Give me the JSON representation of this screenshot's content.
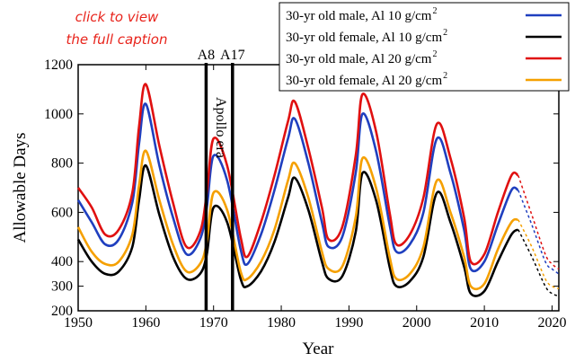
{
  "caption_link": {
    "line1": "click to view",
    "line2": "the full caption"
  },
  "colors": {
    "blue": "#1f3fbf",
    "black": "#000000",
    "red": "#e01010",
    "orange": "#f5a000"
  },
  "chart_data": {
    "type": "line",
    "xlabel": "Year",
    "ylabel": "Allowable Days",
    "xlim": [
      1950,
      2021
    ],
    "ylim": [
      200,
      1200
    ],
    "xticks": [
      1950,
      1960,
      1970,
      1980,
      1990,
      2000,
      2010,
      2020
    ],
    "yticks": [
      200,
      300,
      400,
      600,
      800,
      1000,
      1200
    ],
    "grid": false,
    "legend_position": "top-right",
    "legend": [
      {
        "label": "30-yr old   male, Al 10 g/cm",
        "sup": "2",
        "color": "#1f3fbf"
      },
      {
        "label": "30-yr old female, Al 10 g/cm",
        "sup": "2",
        "color": "#000000"
      },
      {
        "label": "30-yr old   male, Al 20 g/cm",
        "sup": "2",
        "color": "#e01010"
      },
      {
        "label": "30-yr old female, Al 20 g/cm",
        "sup": "2",
        "color": "#f5a000"
      }
    ],
    "vlines": [
      {
        "x": 1968.9,
        "label": "A8"
      },
      {
        "x": 1972.8,
        "label": "A17"
      }
    ],
    "era_label": "Apollo era",
    "forecast_from": 2015.5,
    "x": [
      1950,
      1952,
      1954,
      1956,
      1958,
      1959,
      1960,
      1962,
      1964,
      1966,
      1968,
      1969,
      1970,
      1972,
      1974,
      1975,
      1977,
      1979,
      1981,
      1982,
      1984,
      1986,
      1987,
      1989,
      1991,
      1992,
      1994,
      1996,
      1997,
      1999,
      2001,
      2003,
      2005,
      2007,
      2008,
      2010,
      2012,
      2014,
      2015,
      2017,
      2019,
      2020,
      2021
    ],
    "series": [
      {
        "name": "30-yr old   male, Al 10 g/cm2",
        "color": "#1f3fbf",
        "values": [
          650,
          560,
          470,
          490,
          640,
          880,
          1040,
          790,
          580,
          430,
          490,
          620,
          830,
          730,
          450,
          390,
          510,
          690,
          900,
          980,
          800,
          560,
          460,
          500,
          760,
          1000,
          850,
          550,
          440,
          470,
          600,
          900,
          760,
          530,
          370,
          400,
          550,
          690,
          690,
          550,
          400,
          370,
          350
        ]
      },
      {
        "name": "30-yr old female, Al 10 g/cm2",
        "color": "#000000",
        "values": [
          490,
          400,
          350,
          360,
          460,
          650,
          790,
          590,
          420,
          330,
          350,
          430,
          620,
          560,
          330,
          300,
          360,
          480,
          660,
          740,
          610,
          400,
          330,
          340,
          520,
          760,
          650,
          380,
          300,
          320,
          420,
          680,
          560,
          380,
          270,
          280,
          400,
          510,
          530,
          420,
          300,
          270,
          260
        ]
      },
      {
        "name": "30-yr old   male, Al 20 g/cm2",
        "color": "#e01010",
        "values": [
          700,
          620,
          510,
          530,
          680,
          950,
          1120,
          870,
          640,
          460,
          520,
          680,
          900,
          790,
          500,
          420,
          560,
          750,
          970,
          1050,
          860,
          620,
          490,
          540,
          830,
          1080,
          930,
          600,
          470,
          510,
          660,
          960,
          820,
          580,
          400,
          430,
          600,
          750,
          750,
          590,
          430,
          390,
          370
        ]
      },
      {
        "name": "30-yr old female, Al 20 g/cm2",
        "color": "#f5a000",
        "values": [
          540,
          440,
          390,
          400,
          510,
          710,
          850,
          650,
          470,
          360,
          390,
          480,
          680,
          610,
          360,
          330,
          400,
          530,
          730,
          800,
          660,
          440,
          370,
          380,
          580,
          820,
          700,
          420,
          330,
          350,
          460,
          730,
          600,
          420,
          300,
          310,
          450,
          560,
          570,
          460,
          330,
          300,
          290
        ]
      }
    ]
  }
}
